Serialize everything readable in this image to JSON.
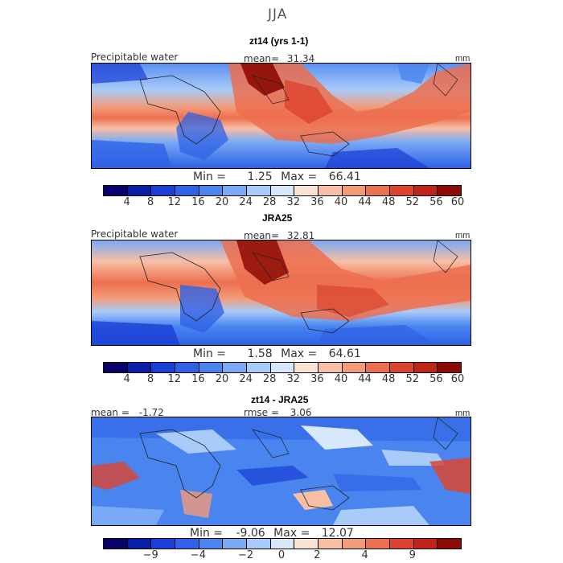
{
  "season": "JJA",
  "panels": [
    {
      "title": "zt14 (yrs 1-1)",
      "variable": "Precipitable water",
      "mean_label": "mean=",
      "mean": "31.34",
      "units": "mm",
      "min_label": "Min =",
      "min": "1.25",
      "max_label": "Max =",
      "max": "66.41"
    },
    {
      "title": "JRA25",
      "variable": "Precipitable water",
      "mean_label": "mean=",
      "mean": "32.81",
      "units": "mm",
      "min_label": "Min =",
      "min": "1.58",
      "max_label": "Max =",
      "max": "64.61"
    },
    {
      "title": "zt14 - JRA25",
      "mean_label": "mean =",
      "mean": "-1.72",
      "rmse_label": "rmse =",
      "rmse": "3.06",
      "units": "mm",
      "min_label": "Min =",
      "min": "-9.06",
      "max_label": "Max =",
      "max": "12.07"
    }
  ],
  "colorbar_full": {
    "colors": [
      "#08006b",
      "#0a1fa8",
      "#1a3fd6",
      "#2f62e6",
      "#4a85ef",
      "#7aa9f5",
      "#a9cbf9",
      "#d8e8fb",
      "#fbe3d4",
      "#f8bfa4",
      "#f39a78",
      "#ec6f4f",
      "#dc4430",
      "#bf2416",
      "#8e0a04"
    ],
    "ticks": [
      "4",
      "8",
      "12",
      "16",
      "20",
      "24",
      "28",
      "32",
      "36",
      "40",
      "44",
      "48",
      "52",
      "56",
      "60"
    ]
  },
  "colorbar_diff": {
    "colors": [
      "#08006b",
      "#0a1fa8",
      "#1a3fd6",
      "#2f62e6",
      "#4a85ef",
      "#7aa9f5",
      "#a9cbf9",
      "#d8e8fb",
      "#fbe3d4",
      "#f8bfa4",
      "#f39a78",
      "#ec6f4f",
      "#dc4430",
      "#bf2416",
      "#8e0a04"
    ],
    "ticks": [
      "−9",
      "−4",
      "−2",
      "0",
      "2",
      "4",
      "9"
    ]
  },
  "chart_data": [
    {
      "type": "heatmap",
      "title": "zt14 (yrs 1-1)",
      "subtitle": "JJA",
      "variable": "Precipitable water",
      "units": "mm",
      "mean": 31.34,
      "min": 1.25,
      "max": 66.41,
      "levels": [
        4,
        8,
        12,
        16,
        20,
        24,
        28,
        32,
        36,
        40,
        44,
        48,
        52,
        56,
        60
      ]
    },
    {
      "type": "heatmap",
      "title": "JRA25",
      "variable": "Precipitable water",
      "units": "mm",
      "mean": 32.81,
      "min": 1.58,
      "max": 64.61,
      "levels": [
        4,
        8,
        12,
        16,
        20,
        24,
        28,
        32,
        36,
        40,
        44,
        48,
        52,
        56,
        60
      ]
    },
    {
      "type": "heatmap",
      "title": "zt14 - JRA25",
      "units": "mm",
      "mean": -1.72,
      "rmse": 3.06,
      "min": -9.06,
      "max": 12.07,
      "levels": [
        -9,
        -4,
        -2,
        0,
        2,
        4,
        9
      ]
    }
  ]
}
